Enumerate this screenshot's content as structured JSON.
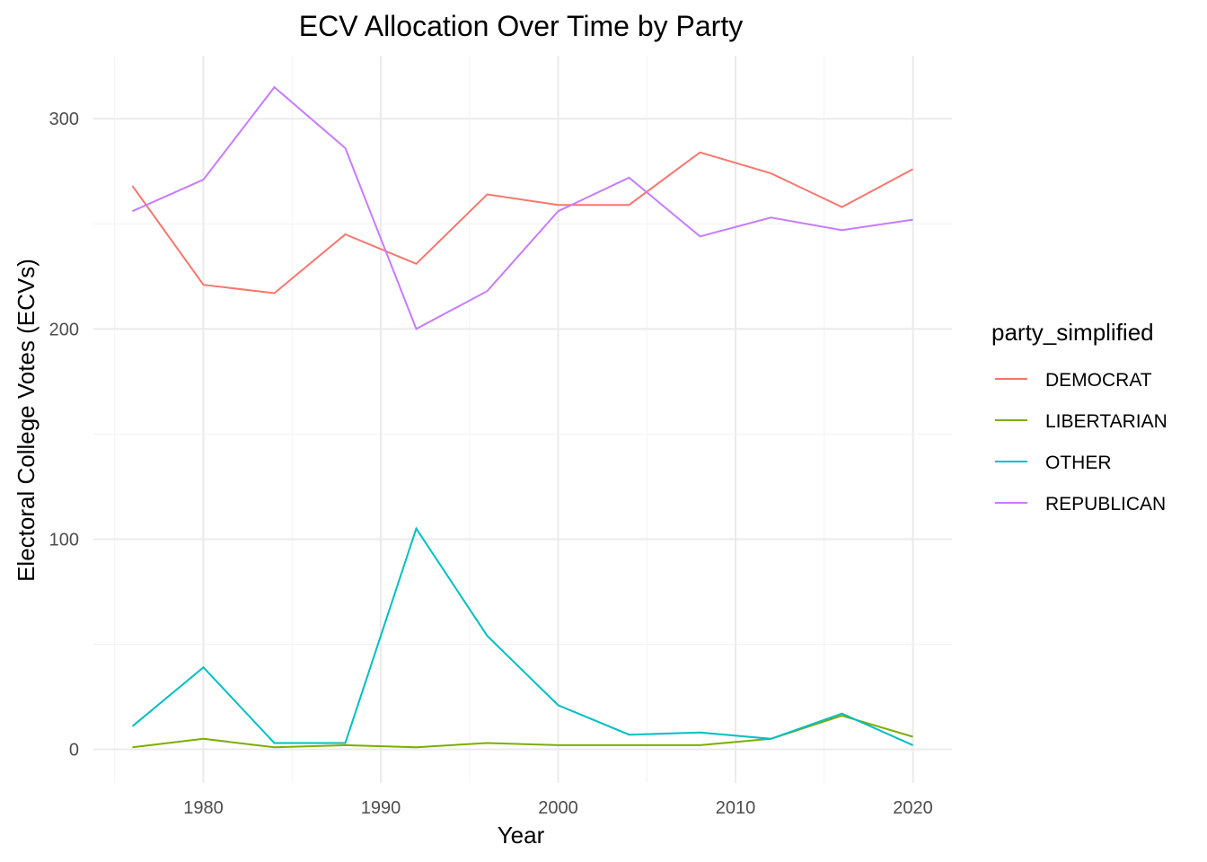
{
  "chart_data": {
    "type": "line",
    "title": "ECV Allocation Over Time by Party",
    "xlabel": "Year",
    "ylabel": "Electoral College Votes (ECVs)",
    "x": [
      1976,
      1980,
      1984,
      1988,
      1992,
      1996,
      2000,
      2004,
      2008,
      2012,
      2016,
      2020
    ],
    "xlim": [
      1973.8,
      2022.2
    ],
    "ylim": [
      -16,
      330
    ],
    "x_ticks": [
      1980,
      1990,
      2000,
      2010,
      2020
    ],
    "y_ticks": [
      0,
      100,
      200,
      300
    ],
    "grid": true,
    "legend_position": "right",
    "legend_title": "party_simplified",
    "series": [
      {
        "name": "DEMOCRAT",
        "color": "#F8766D",
        "values": [
          268,
          221,
          217,
          245,
          231,
          264,
          259,
          259,
          284,
          274,
          258,
          276
        ]
      },
      {
        "name": "LIBERTARIAN",
        "color": "#7CAE00",
        "values": [
          1,
          5,
          1,
          2,
          1,
          3,
          2,
          2,
          2,
          5,
          16,
          6
        ]
      },
      {
        "name": "OTHER",
        "color": "#00BFC4",
        "values": [
          11,
          39,
          3,
          3,
          105,
          54,
          21,
          7,
          8,
          5,
          17,
          2
        ]
      },
      {
        "name": "REPUBLICAN",
        "color": "#C77CFF",
        "values": [
          256,
          271,
          315,
          286,
          200,
          218,
          256,
          272,
          244,
          253,
          247,
          252
        ]
      }
    ]
  }
}
